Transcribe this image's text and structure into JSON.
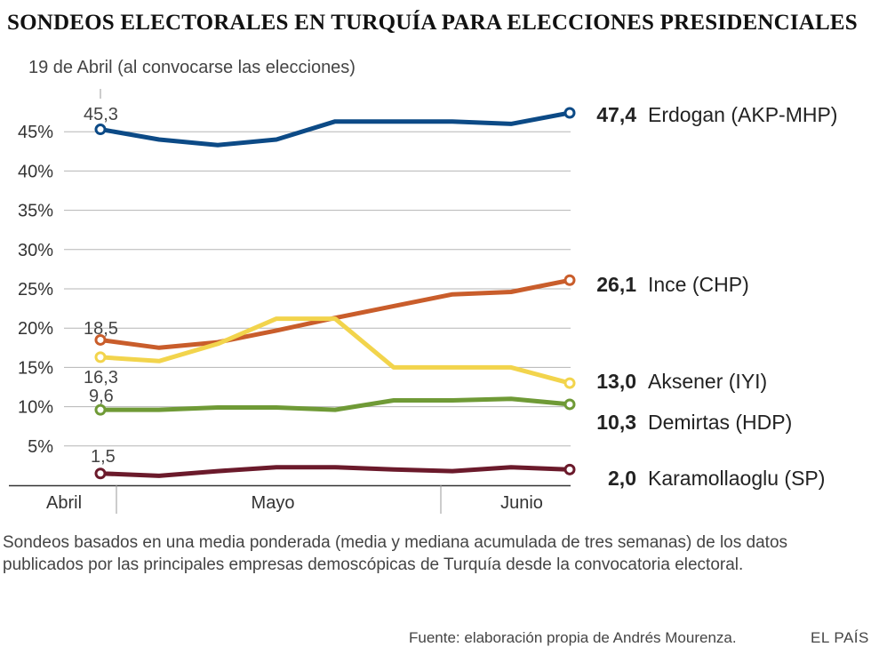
{
  "header": {
    "title": "SONDEOS ELECTORALES EN TURQUÍA PARA ELECCIONES PRESIDENCIALES"
  },
  "chart_data": {
    "type": "line",
    "title": "SONDEOS ELECTORALES EN TURQUÍA PARA ELECCIONES PRESIDENCIALES",
    "subtitle": "19 de Abril (al convocarse las elecciones)",
    "ylim": [
      0,
      50
    ],
    "yticks": [
      5,
      10,
      15,
      20,
      25,
      30,
      35,
      40,
      45
    ],
    "ytick_labels": [
      "5%",
      "10%",
      "15%",
      "20%",
      "25%",
      "30%",
      "35%",
      "40%",
      "45%"
    ],
    "grid": true,
    "x": [
      0,
      1,
      2,
      3,
      4,
      5,
      6,
      7,
      8
    ],
    "x_labels": [
      "Abril",
      "Mayo",
      "Junio"
    ],
    "series": [
      {
        "name": "Erdogan (AKP-MHP)",
        "color": "#0c4a86",
        "values": [
          45.3,
          44.0,
          43.3,
          44.0,
          46.3,
          46.3,
          46.3,
          46.0,
          47.4
        ],
        "start_label": "45,3",
        "end_label": "47,4"
      },
      {
        "name": "Ince (CHP)",
        "color": "#c95d2b",
        "values": [
          18.5,
          17.5,
          18.2,
          19.7,
          21.3,
          22.8,
          24.3,
          24.6,
          26.1
        ],
        "start_label": "18,5",
        "end_label": "26,1"
      },
      {
        "name": "Aksener (IYI)",
        "color": "#f2d44c",
        "values": [
          16.3,
          15.8,
          18.0,
          21.2,
          21.2,
          15.0,
          15.0,
          15.0,
          13.0
        ],
        "start_label": "16,3",
        "end_label": "13,0"
      },
      {
        "name": "Demirtas (HDP)",
        "color": "#6f9a36",
        "values": [
          9.6,
          9.6,
          9.9,
          9.9,
          9.6,
          10.8,
          10.8,
          11.0,
          10.3
        ],
        "start_label": "9,6",
        "end_label": "10,3"
      },
      {
        "name": "Karamollaoglu (SP)",
        "color": "#6b1a2b",
        "values": [
          1.5,
          1.2,
          1.8,
          2.3,
          2.3,
          2.0,
          1.8,
          2.3,
          2.0
        ],
        "start_label": "1,5",
        "end_label": "2,0"
      }
    ]
  },
  "note": "Sondeos basados en una media ponderada (media y mediana acumulada de tres semanas) de los datos publicados por las principales empresas demoscópicas de Turquía desde la convocatoria electoral.",
  "source": "Fuente: elaboración propia de Andrés Mourenza.",
  "brand": "EL PAÍS"
}
